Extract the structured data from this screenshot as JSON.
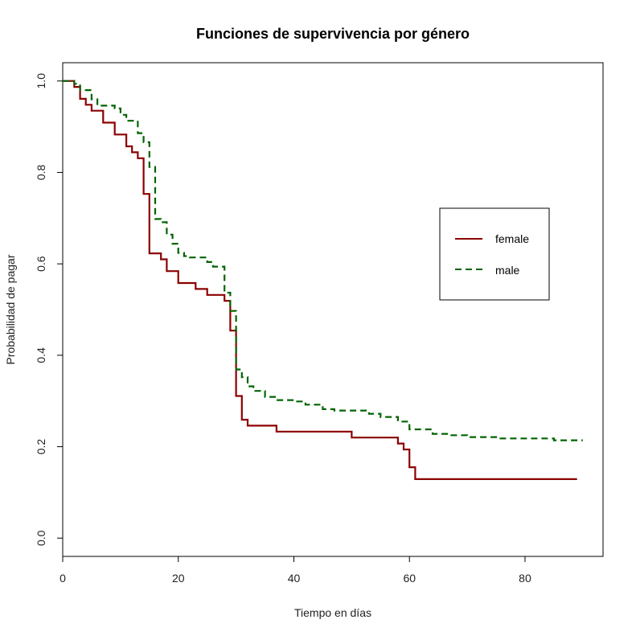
{
  "chart_data": {
    "type": "line",
    "step": true,
    "title": "Funciones de supervivencia por género",
    "xlabel": "Tiempo en días",
    "ylabel": "Probabilidad de pagar",
    "xlim": [
      0,
      93.5
    ],
    "ylim": [
      -0.04,
      1.04
    ],
    "xticks": [
      0,
      20,
      40,
      60,
      80
    ],
    "yticks": [
      0.0,
      0.2,
      0.4,
      0.6,
      0.8,
      1.0
    ],
    "xtick_labels": [
      "0",
      "20",
      "40",
      "60",
      "80"
    ],
    "ytick_labels": [
      "0.0",
      "0.2",
      "0.4",
      "0.6",
      "0.8",
      "1.0"
    ],
    "grid": false,
    "legend_position": "right",
    "series": [
      {
        "name": "female",
        "color": "#8b0000",
        "dash": "solid",
        "x": [
          0,
          2,
          3,
          4,
          5,
          7,
          9,
          11,
          12,
          13,
          14,
          15,
          17,
          18,
          20,
          23,
          25,
          28,
          29,
          30,
          31,
          32,
          37,
          50,
          58,
          59,
          60,
          61,
          89
        ],
        "y": [
          1.0,
          0.987,
          0.961,
          0.948,
          0.935,
          0.909,
          0.883,
          0.857,
          0.844,
          0.831,
          0.753,
          0.623,
          0.61,
          0.584,
          0.558,
          0.545,
          0.532,
          0.519,
          0.454,
          0.311,
          0.259,
          0.246,
          0.233,
          0.22,
          0.207,
          0.194,
          0.155,
          0.129,
          0.129
        ]
      },
      {
        "name": "male",
        "color": "#006400",
        "dash": "dashed",
        "x": [
          0,
          2,
          3,
          5,
          6,
          9,
          10,
          11,
          13,
          14,
          15,
          16,
          17,
          18,
          19,
          20,
          21,
          22,
          25,
          26,
          28,
          29,
          30,
          31,
          32,
          33,
          35,
          37,
          40,
          42,
          45,
          47,
          53,
          55,
          58,
          60,
          64,
          67,
          70,
          75,
          85,
          90
        ],
        "y": [
          1.0,
          0.994,
          0.98,
          0.96,
          0.946,
          0.94,
          0.926,
          0.913,
          0.886,
          0.866,
          0.812,
          0.698,
          0.691,
          0.664,
          0.644,
          0.624,
          0.617,
          0.614,
          0.604,
          0.594,
          0.537,
          0.497,
          0.369,
          0.352,
          0.332,
          0.322,
          0.309,
          0.302,
          0.299,
          0.292,
          0.282,
          0.279,
          0.272,
          0.265,
          0.255,
          0.238,
          0.228,
          0.225,
          0.221,
          0.218,
          0.214,
          0.214
        ]
      }
    ]
  }
}
